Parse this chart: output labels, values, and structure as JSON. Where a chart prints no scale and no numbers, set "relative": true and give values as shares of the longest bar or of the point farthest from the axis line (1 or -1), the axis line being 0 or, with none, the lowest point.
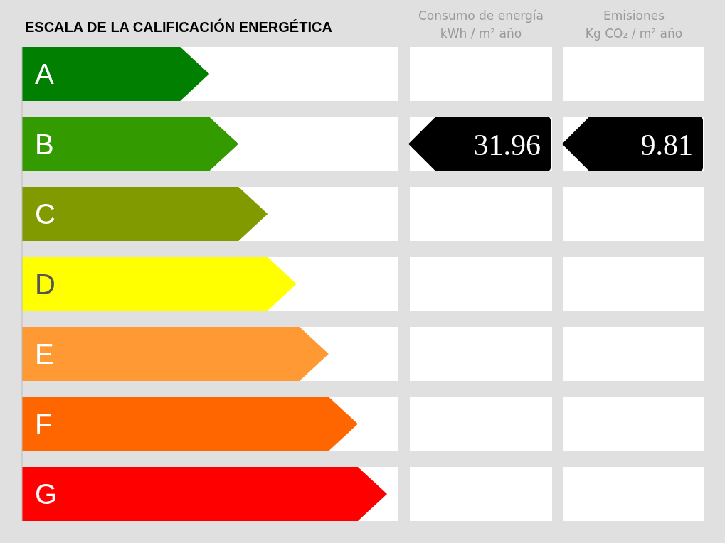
{
  "chart_data": {
    "type": "bar",
    "orientation": "horizontal",
    "relative": true,
    "title": "ESCALA DE LA CALIFICACIÓN ENERGÉTICA",
    "categories": [
      "A",
      "B",
      "C",
      "D",
      "E",
      "F",
      "G"
    ],
    "values": [
      0.513,
      0.593,
      0.673,
      0.752,
      0.84,
      0.92,
      1
    ],
    "colors": [
      "#007f00",
      "#339a00",
      "#809a00",
      "#ffff00",
      "#ff9933",
      "#ff6600",
      "#ff0000"
    ],
    "annotations": [
      "Consumo de energía\nkWh / m² año",
      "Emisiones\nKg CO₂ / m² año",
      "31.96",
      "9.81"
    ]
  }
}
